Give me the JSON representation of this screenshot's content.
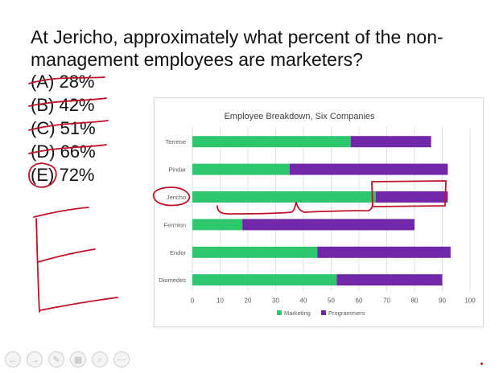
{
  "question": {
    "line1": "At Jericho, approximately what percent of the non-",
    "line2": "management employees are marketers?"
  },
  "choices": [
    {
      "letter": "(A)",
      "value": "28%",
      "crossed": true
    },
    {
      "letter": "(B)",
      "value": "42%",
      "crossed": true
    },
    {
      "letter": "(C)",
      "value": "51%",
      "crossed": true
    },
    {
      "letter": "(D)",
      "value": "66%",
      "crossed": true
    },
    {
      "letter": "(E)",
      "value": "72%",
      "crossed": false,
      "circled": true
    }
  ],
  "colors": {
    "marketing": "#2fc76d",
    "programmers": "#7128a8",
    "ink": "#c0102a",
    "grid": "#d9d9d9",
    "axis_text": "#595959",
    "title_text": "#404040"
  },
  "chart_data": {
    "type": "bar",
    "orientation": "horizontal",
    "stacked": true,
    "title": "Employee Breakdown, Six Companies",
    "categories": [
      "Terrene",
      "Pindar",
      "Jericho",
      "Fermion",
      "Endor",
      "Diomedes"
    ],
    "series": [
      {
        "name": "Marketing",
        "values": [
          57,
          35,
          66,
          18,
          45,
          52
        ]
      },
      {
        "name": "Programmers",
        "values": [
          29,
          57,
          26,
          62,
          48,
          38
        ]
      }
    ],
    "xlim": [
      0,
      100
    ],
    "xticks": [
      "0",
      "10",
      "20",
      "30",
      "40",
      "50",
      "60",
      "70",
      "80",
      "90",
      "100"
    ],
    "grid": true,
    "legend": "bottom",
    "xlabel": "",
    "ylabel": ""
  },
  "controls": [
    {
      "icon": "back-arrow-icon",
      "glyph": "←"
    },
    {
      "icon": "forward-arrow-icon",
      "glyph": "→"
    },
    {
      "icon": "pen-icon",
      "glyph": "✎"
    },
    {
      "icon": "slides-icon",
      "glyph": "▦"
    },
    {
      "icon": "zoom-icon",
      "glyph": "⌕"
    },
    {
      "icon": "more-icon",
      "glyph": "⋯"
    }
  ]
}
